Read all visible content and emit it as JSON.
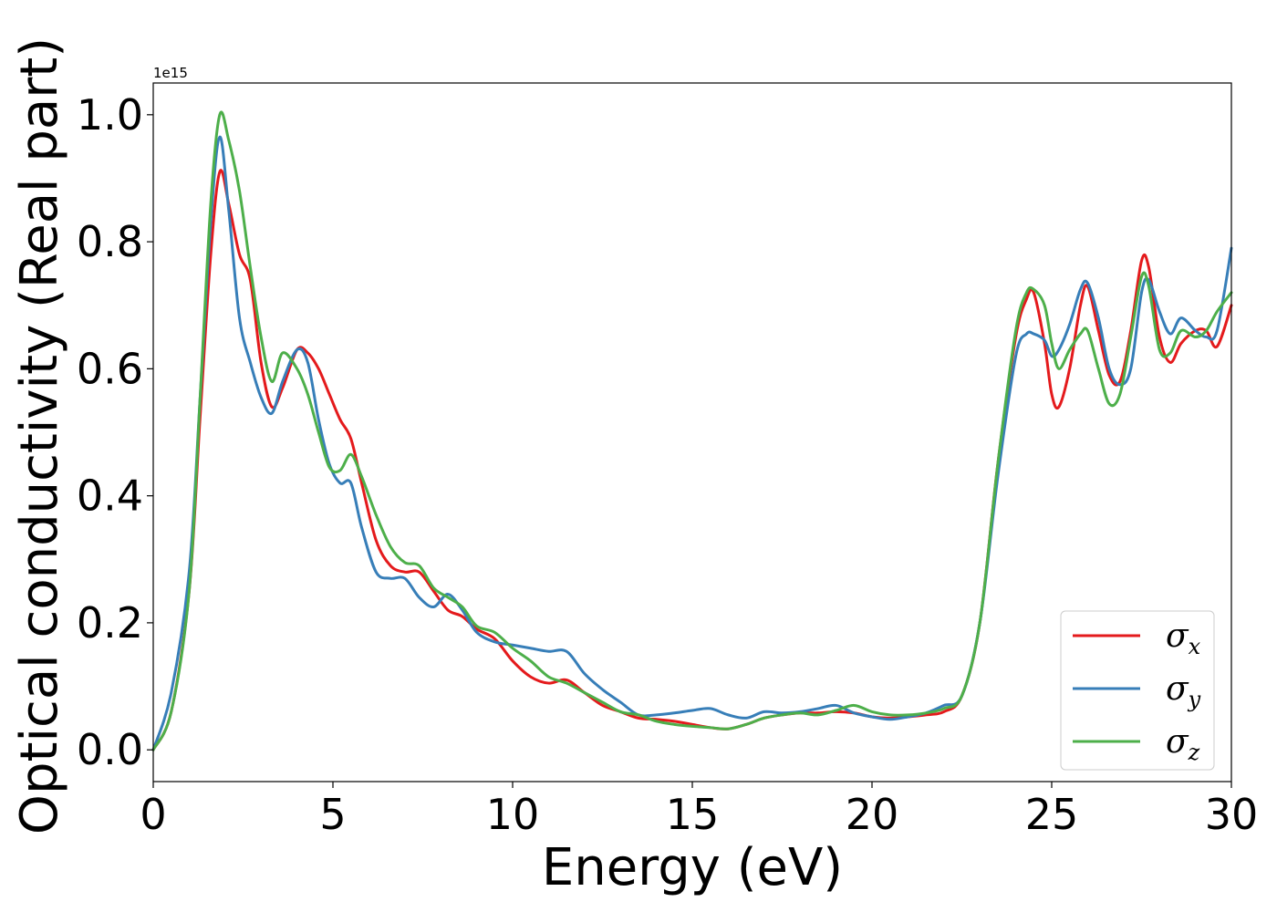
{
  "chart_data": {
    "type": "line",
    "title": "",
    "xlabel": "Energy (eV)",
    "ylabel": "Optical conductivity (Real part)",
    "y_offset_text": "1e15",
    "xlim": [
      0,
      30
    ],
    "ylim": [
      -0.05,
      1.05
    ],
    "y_scale_factor": 1000000000000000.0,
    "xticks": [
      0,
      5,
      10,
      15,
      20,
      25,
      30
    ],
    "xtick_labels": [
      "0",
      "5",
      "10",
      "15",
      "20",
      "25",
      "30"
    ],
    "yticks": [
      0.0,
      0.2,
      0.4,
      0.6,
      0.8,
      1.0
    ],
    "ytick_labels": [
      "0.0",
      "0.2",
      "0.4",
      "0.6",
      "0.8",
      "1.0"
    ],
    "grid": false,
    "legend_position": "lower-right",
    "series": [
      {
        "name": "σx",
        "symbol": "σ",
        "subscript": "x",
        "color": "#e41a1c",
        "x": [
          0,
          0.5,
          1,
          1.3,
          1.6,
          1.85,
          2.1,
          2.4,
          2.7,
          3.0,
          3.3,
          3.6,
          4.0,
          4.3,
          4.6,
          4.9,
          5.2,
          5.5,
          5.8,
          6.2,
          6.6,
          7.0,
          7.4,
          7.8,
          8.2,
          8.6,
          9.0,
          9.5,
          10.0,
          10.5,
          11.0,
          11.5,
          12.0,
          12.5,
          13.0,
          13.5,
          14.0,
          14.5,
          15.0,
          15.5,
          16.0,
          16.5,
          17.0,
          17.5,
          18.0,
          18.5,
          19.0,
          19.5,
          20.0,
          20.5,
          21.0,
          21.5,
          22.0,
          22.5,
          23.0,
          23.5,
          24.0,
          24.3,
          24.5,
          24.8,
          25.0,
          25.2,
          25.5,
          25.8,
          26.0,
          26.3,
          26.6,
          26.9,
          27.2,
          27.5,
          27.7,
          28.0,
          28.3,
          28.6,
          29.0,
          29.3,
          29.6,
          30.0
        ],
        "y": [
          0,
          0.06,
          0.25,
          0.52,
          0.78,
          0.91,
          0.86,
          0.78,
          0.74,
          0.61,
          0.54,
          0.57,
          0.63,
          0.625,
          0.6,
          0.56,
          0.52,
          0.49,
          0.42,
          0.33,
          0.29,
          0.28,
          0.28,
          0.25,
          0.22,
          0.21,
          0.19,
          0.175,
          0.14,
          0.115,
          0.105,
          0.11,
          0.09,
          0.07,
          0.06,
          0.05,
          0.048,
          0.045,
          0.04,
          0.035,
          0.033,
          0.04,
          0.05,
          0.055,
          0.058,
          0.058,
          0.06,
          0.058,
          0.052,
          0.05,
          0.052,
          0.055,
          0.06,
          0.085,
          0.2,
          0.45,
          0.65,
          0.71,
          0.72,
          0.64,
          0.56,
          0.54,
          0.6,
          0.7,
          0.73,
          0.66,
          0.59,
          0.58,
          0.66,
          0.77,
          0.76,
          0.65,
          0.61,
          0.64,
          0.66,
          0.66,
          0.635,
          0.7
        ]
      },
      {
        "name": "σy",
        "symbol": "σ",
        "subscript": "y",
        "color": "#377eb8",
        "x": [
          0,
          0.5,
          1,
          1.3,
          1.6,
          1.85,
          2.1,
          2.4,
          2.7,
          3.0,
          3.3,
          3.6,
          4.0,
          4.3,
          4.6,
          4.9,
          5.2,
          5.5,
          5.8,
          6.2,
          6.6,
          7.0,
          7.4,
          7.8,
          8.2,
          8.6,
          9.0,
          9.5,
          10.0,
          10.5,
          11.0,
          11.5,
          12.0,
          12.5,
          13.0,
          13.5,
          14.0,
          14.5,
          15.0,
          15.5,
          16.0,
          16.5,
          17.0,
          17.5,
          18.0,
          18.5,
          19.0,
          19.5,
          20.0,
          20.5,
          21.0,
          21.5,
          22.0,
          22.5,
          23.0,
          23.5,
          24.0,
          24.3,
          24.5,
          24.8,
          25.0,
          25.2,
          25.5,
          25.8,
          26.0,
          26.3,
          26.6,
          26.9,
          27.2,
          27.5,
          27.7,
          28.0,
          28.3,
          28.6,
          29.0,
          29.3,
          29.6,
          30.0
        ],
        "y": [
          0,
          0.09,
          0.28,
          0.55,
          0.83,
          0.965,
          0.85,
          0.68,
          0.61,
          0.555,
          0.53,
          0.58,
          0.63,
          0.61,
          0.52,
          0.45,
          0.42,
          0.42,
          0.35,
          0.28,
          0.27,
          0.27,
          0.24,
          0.225,
          0.245,
          0.22,
          0.185,
          0.17,
          0.165,
          0.16,
          0.155,
          0.155,
          0.12,
          0.095,
          0.075,
          0.055,
          0.055,
          0.058,
          0.062,
          0.065,
          0.055,
          0.05,
          0.06,
          0.058,
          0.06,
          0.065,
          0.07,
          0.058,
          0.052,
          0.048,
          0.052,
          0.058,
          0.07,
          0.085,
          0.2,
          0.43,
          0.62,
          0.655,
          0.655,
          0.645,
          0.62,
          0.63,
          0.67,
          0.725,
          0.735,
          0.68,
          0.6,
          0.575,
          0.6,
          0.72,
          0.74,
          0.69,
          0.655,
          0.68,
          0.66,
          0.65,
          0.66,
          0.79
        ]
      },
      {
        "name": "σz",
        "symbol": "σ",
        "subscript": "z",
        "color": "#4daf4a",
        "x": [
          0,
          0.5,
          1,
          1.3,
          1.6,
          1.85,
          2.1,
          2.4,
          2.7,
          3.0,
          3.3,
          3.6,
          4.0,
          4.3,
          4.6,
          4.9,
          5.2,
          5.5,
          5.8,
          6.2,
          6.6,
          7.0,
          7.4,
          7.8,
          8.2,
          8.6,
          9.0,
          9.5,
          10.0,
          10.5,
          11.0,
          11.5,
          12.0,
          12.5,
          13.0,
          13.5,
          14.0,
          14.5,
          15.0,
          15.5,
          16.0,
          16.5,
          17.0,
          17.5,
          18.0,
          18.5,
          19.0,
          19.5,
          20.0,
          20.5,
          21.0,
          21.5,
          22.0,
          22.5,
          23.0,
          23.5,
          24.0,
          24.3,
          24.5,
          24.8,
          25.0,
          25.2,
          25.5,
          25.8,
          26.0,
          26.3,
          26.6,
          26.9,
          27.2,
          27.5,
          27.7,
          28.0,
          28.3,
          28.6,
          29.0,
          29.3,
          29.6,
          30.0
        ],
        "y": [
          0,
          0.06,
          0.25,
          0.55,
          0.86,
          1.0,
          0.96,
          0.88,
          0.76,
          0.65,
          0.58,
          0.625,
          0.6,
          0.56,
          0.5,
          0.445,
          0.44,
          0.465,
          0.43,
          0.37,
          0.32,
          0.295,
          0.29,
          0.255,
          0.24,
          0.225,
          0.195,
          0.185,
          0.16,
          0.14,
          0.115,
          0.105,
          0.09,
          0.075,
          0.06,
          0.055,
          0.045,
          0.04,
          0.037,
          0.035,
          0.033,
          0.04,
          0.05,
          0.055,
          0.058,
          0.055,
          0.062,
          0.07,
          0.06,
          0.055,
          0.055,
          0.058,
          0.065,
          0.085,
          0.2,
          0.45,
          0.66,
          0.72,
          0.725,
          0.7,
          0.64,
          0.6,
          0.63,
          0.655,
          0.66,
          0.6,
          0.545,
          0.56,
          0.65,
          0.745,
          0.73,
          0.63,
          0.625,
          0.66,
          0.65,
          0.66,
          0.69,
          0.72
        ]
      }
    ]
  }
}
